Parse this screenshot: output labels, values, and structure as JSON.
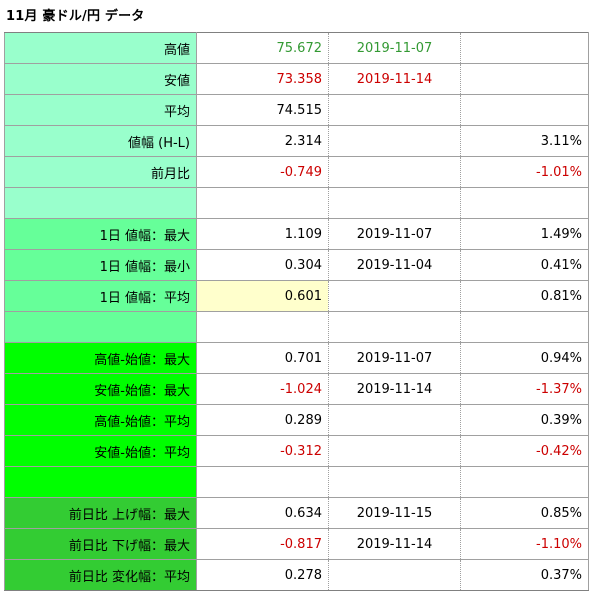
{
  "title": "11月 豪ドル/円 データ",
  "colors": {
    "group1": "#99ffcc",
    "group2": "#66ff99",
    "group3": "#00ff00",
    "group4": "#33cc33",
    "positive": "#339933",
    "negative": "#cc0000",
    "highlight": "#ffffcc"
  },
  "rows": [
    {
      "label": "高値",
      "v1": "75.672",
      "v2": "2019-11-07",
      "v3": ""
    },
    {
      "label": "安値",
      "v1": "73.358",
      "v2": "2019-11-14",
      "v3": ""
    },
    {
      "label": "平均",
      "v1": "74.515",
      "v2": "",
      "v3": ""
    },
    {
      "label": "値幅 (H-L)",
      "v1": "2.314",
      "v2": "",
      "v3": "3.11%"
    },
    {
      "label": "前月比",
      "v1": "-0.749",
      "v2": "",
      "v3": "-1.01%"
    },
    {
      "label": "",
      "v1": "",
      "v2": "",
      "v3": ""
    },
    {
      "label": "1日 値幅：最大",
      "v1": "1.109",
      "v2": "2019-11-07",
      "v3": "1.49%"
    },
    {
      "label": "1日 値幅：最小",
      "v1": "0.304",
      "v2": "2019-11-04",
      "v3": "0.41%"
    },
    {
      "label": "1日 値幅：平均",
      "v1": "0.601",
      "v2": "",
      "v3": "0.81%"
    },
    {
      "label": "",
      "v1": "",
      "v2": "",
      "v3": ""
    },
    {
      "label": "高値-始値：最大",
      "v1": "0.701",
      "v2": "2019-11-07",
      "v3": "0.94%"
    },
    {
      "label": "安値-始値：最大",
      "v1": "-1.024",
      "v2": "2019-11-14",
      "v3": "-1.37%"
    },
    {
      "label": "高値-始値：平均",
      "v1": "0.289",
      "v2": "",
      "v3": "0.39%"
    },
    {
      "label": "安値-始値：平均",
      "v1": "-0.312",
      "v2": "",
      "v3": "-0.42%"
    },
    {
      "label": "",
      "v1": "",
      "v2": "",
      "v3": ""
    },
    {
      "label": "前日比 上げ幅：最大",
      "v1": "0.634",
      "v2": "2019-11-15",
      "v3": "0.85%"
    },
    {
      "label": "前日比 下げ幅：最大",
      "v1": "-0.817",
      "v2": "2019-11-14",
      "v3": "-1.10%"
    },
    {
      "label": "前日比 変化幅：平均",
      "v1": "0.278",
      "v2": "",
      "v3": "0.37%"
    }
  ]
}
